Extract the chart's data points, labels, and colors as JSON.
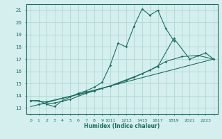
{
  "xlabel": "Humidex (Indice chaleur)",
  "background_color": "#d4efed",
  "grid_color": "#b0d8d4",
  "line_color": "#1a6e63",
  "xlim": [
    -0.5,
    23.5
  ],
  "ylim": [
    12.5,
    21.5
  ],
  "ytick_values": [
    13,
    14,
    15,
    16,
    17,
    18,
    19,
    20,
    21
  ],
  "xtick_labels": [
    "0",
    "1",
    "2",
    "3",
    "4",
    "5",
    "6",
    "7",
    "8",
    "9",
    "1011",
    "1213",
    "1415",
    "1617",
    "1819",
    "2021",
    "2223"
  ],
  "line1_x": [
    0,
    1,
    2,
    3,
    4,
    5,
    6,
    7,
    8,
    9,
    10,
    11,
    12,
    13,
    14,
    15,
    16,
    17,
    18
  ],
  "line1_y": [
    13.6,
    13.6,
    13.3,
    13.1,
    13.6,
    13.9,
    14.2,
    14.4,
    14.7,
    15.1,
    16.5,
    18.3,
    18.0,
    19.7,
    21.1,
    20.6,
    21.0,
    19.5,
    18.5
  ],
  "line2_x": [
    0,
    2,
    4,
    6,
    8,
    10,
    12,
    14,
    16,
    18,
    20,
    22,
    23
  ],
  "line2_y": [
    13.6,
    13.5,
    13.8,
    14.1,
    14.4,
    14.8,
    15.3,
    15.8,
    16.4,
    18.7,
    17.0,
    17.5,
    17.0
  ],
  "line3_x": [
    1,
    3,
    5,
    7,
    9,
    11,
    13,
    15,
    17,
    19,
    21,
    23
  ],
  "line3_y": [
    13.3,
    13.4,
    13.7,
    14.2,
    14.6,
    15.0,
    15.5,
    16.1,
    16.8,
    17.2,
    17.3,
    17.0
  ],
  "line4_x": [
    0,
    23
  ],
  "line4_y": [
    13.1,
    17.0
  ]
}
